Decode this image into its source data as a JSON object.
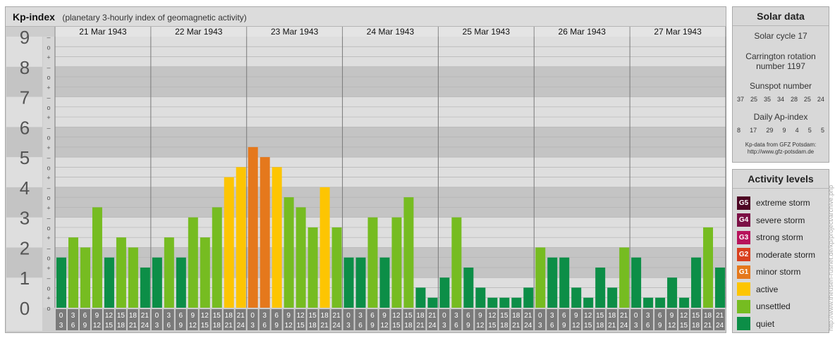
{
  "header": {
    "title": "Kp-index",
    "subtitle": "(planetary 3-hourly index of geomagnetic activity)"
  },
  "chart_data": {
    "type": "bar",
    "dates": [
      "21 Mar 1943",
      "22 Mar 1943",
      "23 Mar 1943",
      "24 Mar 1943",
      "25 Mar 1943",
      "26 Mar 1943",
      "27 Mar 1943"
    ],
    "interval_start": [
      "0",
      "3",
      "6",
      "9",
      "12",
      "15",
      "18",
      "21"
    ],
    "interval_end": [
      "3",
      "6",
      "9",
      "12",
      "15",
      "18",
      "21",
      "24"
    ],
    "values": [
      [
        1.667,
        2.333,
        2.0,
        3.333,
        1.667,
        2.333,
        2.0,
        1.333
      ],
      [
        1.667,
        2.333,
        1.667,
        3.0,
        2.333,
        3.333,
        4.333,
        4.667
      ],
      [
        5.333,
        5.0,
        4.667,
        3.667,
        3.333,
        2.667,
        4.0,
        2.667
      ],
      [
        1.667,
        1.667,
        3.0,
        1.667,
        3.0,
        3.667,
        0.667,
        0.333
      ],
      [
        1.0,
        3.0,
        1.333,
        0.667,
        0.333,
        0.333,
        0.333,
        0.667
      ],
      [
        2.0,
        1.667,
        1.667,
        0.667,
        0.333,
        1.333,
        0.667,
        2.0
      ],
      [
        1.667,
        0.333,
        0.333,
        1.0,
        0.333,
        1.667,
        2.667,
        1.333
      ]
    ],
    "y_ticks": [
      "0",
      "1",
      "2",
      "3",
      "4",
      "5",
      "6",
      "7",
      "8",
      "9"
    ],
    "minor_tick_labels": [
      "+",
      "o",
      "–"
    ],
    "ylim": [
      0,
      9
    ],
    "grid": true,
    "level_colors": {
      "quiet": "#0c8e47",
      "unsettled": "#76bc21",
      "active": "#fdc502",
      "minor": "#e5781c",
      "moderate": "#d9401f",
      "strong": "#b7135b",
      "severe": "#7b1045",
      "extreme": "#4d0523"
    }
  },
  "solar": {
    "title": "Solar data",
    "cycle": "Solar cycle 17",
    "carrington_label": "Carrington rotation",
    "carrington_number": "number 1197",
    "sunspot_label": "Sunspot number",
    "sunspot_values": [
      "37",
      "25",
      "35",
      "34",
      "28",
      "25",
      "24"
    ],
    "ap_label": "Daily Ap-index",
    "ap_values": [
      "8",
      "17",
      "29",
      "9",
      "4",
      "5",
      "5"
    ],
    "credit_line1": "Kp-data from GFZ Potsdam:",
    "credit_line2": "http://www.gfz-potsdam.de"
  },
  "activity": {
    "title": "Activity levels",
    "levels": [
      {
        "badge": "G5",
        "label": "extreme storm",
        "color": "#4d0523"
      },
      {
        "badge": "G4",
        "label": "severe storm",
        "color": "#7b1045"
      },
      {
        "badge": "G3",
        "label": "strong storm",
        "color": "#b7135b"
      },
      {
        "badge": "G2",
        "label": "moderate storm",
        "color": "#d9401f"
      },
      {
        "badge": "G1",
        "label": "minor storm",
        "color": "#e5781c"
      },
      {
        "badge": "",
        "label": "active",
        "color": "#fdc502"
      },
      {
        "badge": "",
        "label": "unsettled",
        "color": "#76bc21"
      },
      {
        "badge": "",
        "label": "quiet",
        "color": "#0c8e47"
      }
    ]
  },
  "watermark": "http://www.theusen-rusnet.de/kp/project/archive.php"
}
